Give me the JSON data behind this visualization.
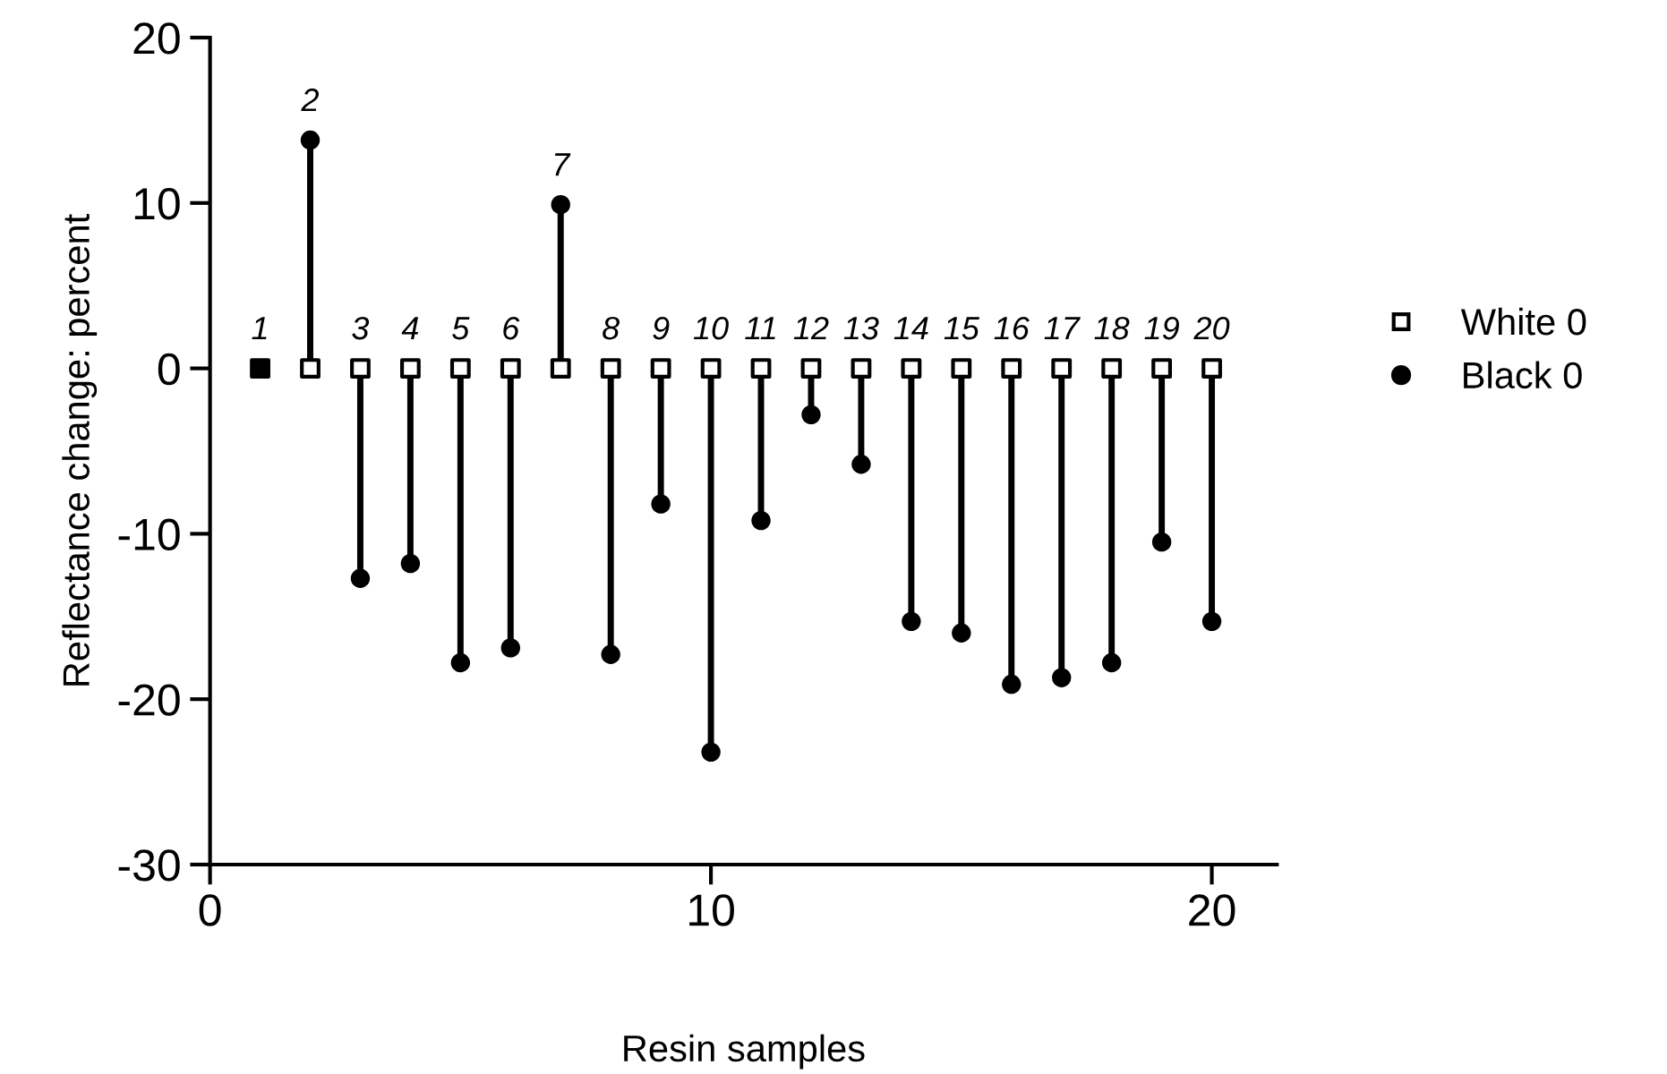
{
  "chart_data": {
    "type": "lollipop",
    "xlabel": "Resin samples",
    "ylabel": "Reflectance change: percent",
    "x": [
      1,
      2,
      3,
      4,
      5,
      6,
      7,
      8,
      9,
      10,
      11,
      12,
      13,
      14,
      15,
      16,
      17,
      18,
      19,
      20
    ],
    "series": [
      {
        "name": "White 0",
        "type": "scatter",
        "marker": "square",
        "color": "#ffffff",
        "values": [
          0,
          0,
          0,
          0,
          0,
          0,
          0,
          0,
          0,
          0,
          0,
          0,
          0,
          0,
          0,
          0,
          0,
          0,
          0,
          0
        ]
      },
      {
        "name": "Black 0",
        "marker": "circle",
        "color": "#000000",
        "values": [
          0,
          13.8,
          -12.7,
          -11.8,
          -17.8,
          -16.9,
          9.9,
          -17.3,
          -8.2,
          -23.2,
          -9.2,
          -2.8,
          -5.8,
          -15.3,
          -16.0,
          -19.1,
          -18.7,
          -17.8,
          -10.5,
          -15.3
        ]
      }
    ],
    "annotations": [
      {
        "text": "1",
        "x": 1,
        "y": 0
      },
      {
        "text": "2",
        "x": 2,
        "y": 13.8
      },
      {
        "text": "3",
        "x": 3,
        "y": 0
      },
      {
        "text": "4",
        "x": 4,
        "y": 0
      },
      {
        "text": "5",
        "x": 5,
        "y": 0
      },
      {
        "text": "6",
        "x": 6,
        "y": 0
      },
      {
        "text": "7",
        "x": 7,
        "y": 9.9
      },
      {
        "text": "8",
        "x": 8,
        "y": 0
      },
      {
        "text": "9",
        "x": 9,
        "y": 0
      },
      {
        "text": "10",
        "x": 10,
        "y": 0
      },
      {
        "text": "11",
        "x": 11,
        "y": 0
      },
      {
        "text": "12",
        "x": 12,
        "y": 0
      },
      {
        "text": "13",
        "x": 13,
        "y": 0
      },
      {
        "text": "14",
        "x": 14,
        "y": 0
      },
      {
        "text": "15",
        "x": 15,
        "y": 0
      },
      {
        "text": "16",
        "x": 16,
        "y": 0
      },
      {
        "text": "17",
        "x": 17,
        "y": 0
      },
      {
        "text": "18",
        "x": 18,
        "y": 0
      },
      {
        "text": "19",
        "x": 19,
        "y": 0
      },
      {
        "text": "20",
        "x": 20,
        "y": 0
      }
    ],
    "xlim": [
      0,
      21.3
    ],
    "xticks": [
      0,
      10,
      20
    ],
    "ylim": [
      -30,
      20
    ],
    "yticks": [
      -30,
      -20,
      -10,
      0,
      10,
      20
    ],
    "legend": "right",
    "grid": false
  }
}
